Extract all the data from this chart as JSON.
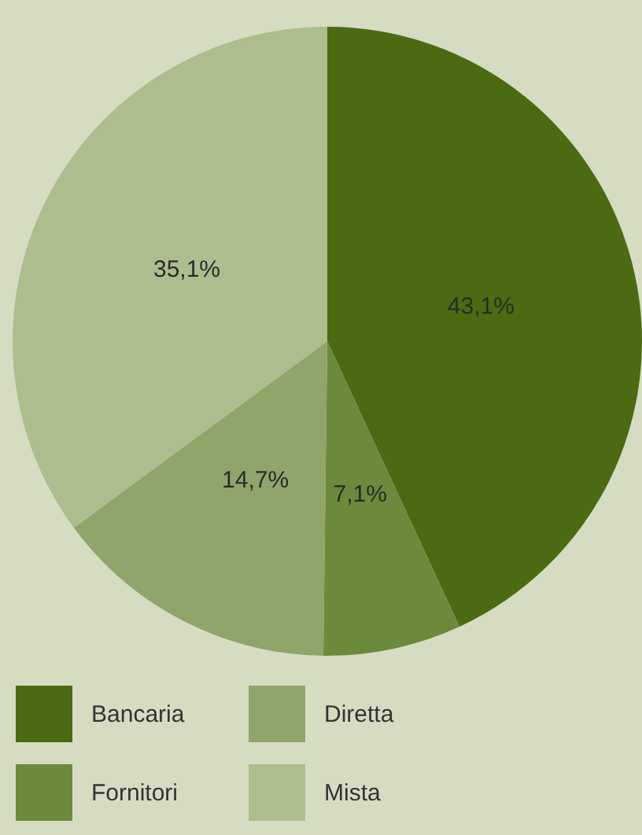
{
  "chart_data": {
    "type": "pie",
    "categories": [
      "Bancaria",
      "Fornitori",
      "Diretta",
      "Mista"
    ],
    "values": [
      43.1,
      7.1,
      14.7,
      35.1
    ],
    "colors": [
      "#4a6b12",
      "#6b8a3c",
      "#8fa56a",
      "#adbd8e"
    ],
    "value_labels": [
      "43,1%",
      "7,1%",
      "14,7%",
      "35,1%"
    ],
    "legend": "bottom"
  }
}
